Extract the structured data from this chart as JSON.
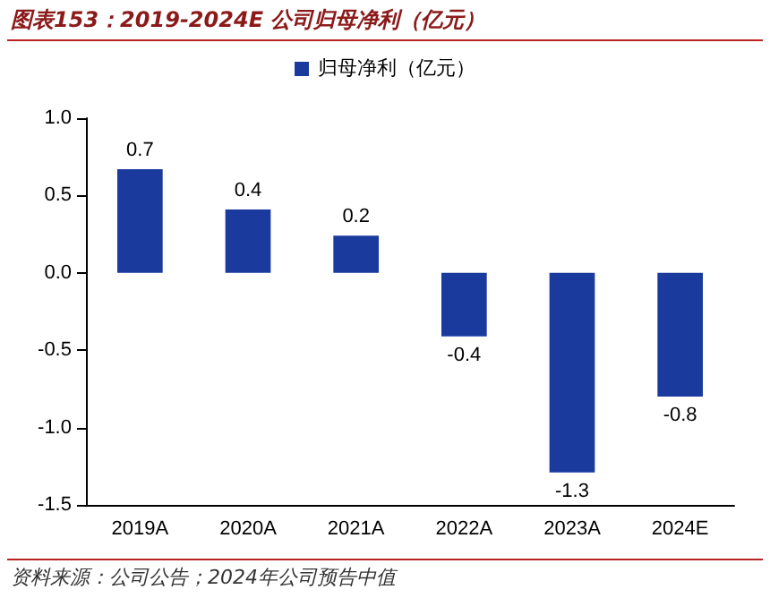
{
  "chart_data": {
    "type": "bar",
    "title": "图表153：2019-2024E 公司归母净利（亿元）",
    "categories": [
      "2019A",
      "2020A",
      "2021A",
      "2022A",
      "2023A",
      "2024E"
    ],
    "series": [
      {
        "name": "归母净利（亿元）",
        "color": "#1a3a9e",
        "values": [
          0.67,
          0.41,
          0.24,
          -0.41,
          -1.29,
          -0.8
        ],
        "value_labels": [
          "0.7",
          "0.4",
          "0.2",
          "-0.4",
          "-1.3",
          "-0.8"
        ]
      }
    ],
    "ylim": [
      -1.5,
      1.0
    ],
    "yticks": [
      {
        "value": -1.5,
        "label": "-1.5"
      },
      {
        "value": -1,
        "label": "-1.0"
      },
      {
        "value": -0.5,
        "label": "-0.5"
      },
      {
        "value": 0,
        "label": "0.0"
      },
      {
        "value": 0.5,
        "label": "0.5"
      },
      {
        "value": 1,
        "label": "1.0"
      }
    ],
    "grid": false,
    "legend": "top",
    "annotations": [
      "资料来源：公司公告；2024年公司预告中值"
    ]
  }
}
